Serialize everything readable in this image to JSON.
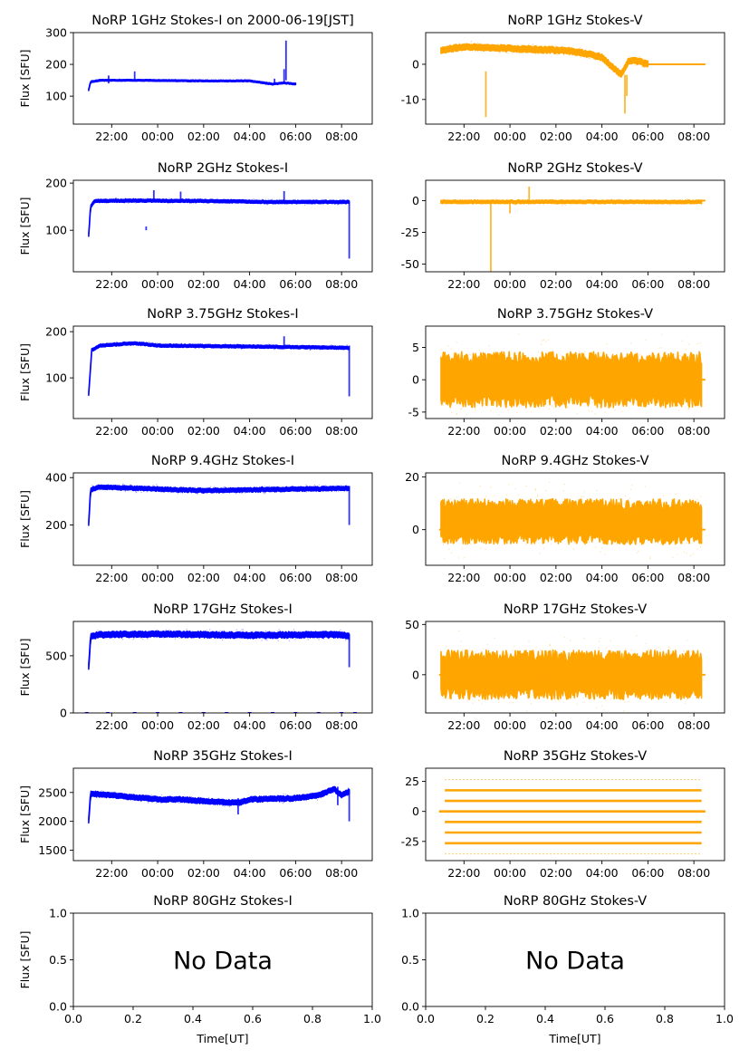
{
  "figure": {
    "xlabel": "Time[UT]"
  },
  "chart_data": [
    {
      "id": "p1i",
      "type": "scatter",
      "title": "NoRP 1GHz Stokes-I on 2000-06-19[JST]",
      "ylabel": "Flux [SFU]",
      "xlabel": "",
      "color": "#0000ff",
      "xlim": [
        "20:20",
        "09:20"
      ],
      "xticks": [
        "22:00",
        "00:00",
        "02:00",
        "04:00",
        "06:00",
        "08:00"
      ],
      "ylim": [
        12,
        300
      ],
      "yticks": [
        100,
        200,
        300
      ],
      "trace": {
        "start": "21:00",
        "end": "06:00",
        "spread": 4,
        "points": [
          [
            "21:00",
            120
          ],
          [
            "21:05",
            145
          ],
          [
            "21:30",
            150
          ],
          [
            "23:00",
            150
          ],
          [
            "02:00",
            148
          ],
          [
            "04:00",
            148
          ],
          [
            "04:30",
            143
          ],
          [
            "05:00",
            138
          ],
          [
            "05:30",
            142
          ],
          [
            "06:00",
            138
          ]
        ]
      },
      "spikes": [
        [
          "21:52",
          140,
          165
        ],
        [
          "23:00",
          150,
          178
        ],
        [
          "05:05",
          140,
          155
        ],
        [
          "05:30",
          140,
          185
        ],
        [
          "05:35",
          150,
          275
        ]
      ]
    },
    {
      "id": "p1v",
      "type": "scatter",
      "title": "NoRP 1GHz Stokes-V",
      "ylabel": "",
      "xlabel": "",
      "color": "#ffa500",
      "xlim": [
        "20:20",
        "09:20"
      ],
      "xticks": [
        "22:00",
        "00:00",
        "02:00",
        "04:00",
        "06:00",
        "08:00"
      ],
      "ylim": [
        -17,
        9
      ],
      "yticks": [
        -10,
        0
      ],
      "trace": {
        "start": "21:00",
        "end": "06:00",
        "spread": 1.4,
        "points": [
          [
            "21:00",
            4
          ],
          [
            "22:00",
            5
          ],
          [
            "00:00",
            4.5
          ],
          [
            "02:00",
            4
          ],
          [
            "03:00",
            3.5
          ],
          [
            "04:00",
            2
          ],
          [
            "04:50",
            -3
          ],
          [
            "05:10",
            1
          ],
          [
            "05:30",
            1
          ],
          [
            "06:00",
            0
          ]
        ]
      },
      "flat": {
        "start": "06:00",
        "end": "08:30",
        "value": 0
      },
      "spikes": [
        [
          "22:57",
          -2,
          -15
        ],
        [
          "05:00",
          -3,
          -14
        ],
        [
          "05:05",
          -3,
          -9
        ]
      ]
    },
    {
      "id": "p2i",
      "type": "scatter",
      "title": "NoRP 2GHz Stokes-I",
      "ylabel": "Flux [SFU]",
      "xlabel": "",
      "color": "#0000ff",
      "xlim": [
        "20:20",
        "09:20"
      ],
      "xticks": [
        "22:00",
        "00:00",
        "02:00",
        "04:00",
        "06:00",
        "08:00"
      ],
      "ylim": [
        12,
        206
      ],
      "yticks": [
        100,
        200
      ],
      "trace": {
        "start": "21:00",
        "end": "08:20",
        "spread": 5,
        "points": [
          [
            "21:00",
            90
          ],
          [
            "21:05",
            150
          ],
          [
            "21:15",
            162
          ],
          [
            "23:00",
            163
          ],
          [
            "02:00",
            162
          ],
          [
            "05:00",
            160
          ],
          [
            "08:20",
            160
          ]
        ]
      },
      "spikes": [
        [
          "23:30",
          100,
          108
        ],
        [
          "23:50",
          160,
          185
        ],
        [
          "01:00",
          160,
          182
        ],
        [
          "05:30",
          160,
          183
        ],
        [
          "08:20",
          40,
          160
        ]
      ]
    },
    {
      "id": "p2v",
      "type": "scatter",
      "title": "NoRP 2GHz Stokes-V",
      "ylabel": "",
      "xlabel": "",
      "color": "#ffa500",
      "xlim": [
        "20:20",
        "09:20"
      ],
      "xticks": [
        "22:00",
        "00:00",
        "02:00",
        "04:00",
        "06:00",
        "08:00"
      ],
      "ylim": [
        -56,
        16
      ],
      "yticks": [
        -50,
        -25,
        0
      ],
      "trace": {
        "start": "21:00",
        "end": "08:20",
        "spread": 2,
        "points": [
          [
            "21:00",
            -1
          ],
          [
            "08:20",
            -1
          ]
        ]
      },
      "flat": {
        "start": "08:20",
        "end": "08:30",
        "value": 0
      },
      "spikes": [
        [
          "00:50",
          0,
          11
        ],
        [
          "23:10",
          -2,
          -56
        ],
        [
          "00:00",
          -2,
          -10
        ]
      ]
    },
    {
      "id": "p3i",
      "type": "scatter",
      "title": "NoRP 3.75GHz Stokes-I",
      "ylabel": "Flux [SFU]",
      "xlabel": "",
      "color": "#0000ff",
      "xlim": [
        "20:20",
        "09:20"
      ],
      "xticks": [
        "22:00",
        "00:00",
        "02:00",
        "04:00",
        "06:00",
        "08:00"
      ],
      "ylim": [
        12,
        212
      ],
      "yticks": [
        100,
        200
      ],
      "trace": {
        "start": "21:00",
        "end": "08:20",
        "spread": 5,
        "points": [
          [
            "21:00",
            65
          ],
          [
            "21:08",
            160
          ],
          [
            "21:30",
            170
          ],
          [
            "23:00",
            175
          ],
          [
            "00:00",
            170
          ],
          [
            "04:00",
            168
          ],
          [
            "08:20",
            165
          ]
        ]
      },
      "spikes": [
        [
          "05:30",
          165,
          190
        ],
        [
          "08:20",
          60,
          170
        ]
      ]
    },
    {
      "id": "p3v",
      "type": "scatter",
      "title": "NoRP 3.75GHz Stokes-V",
      "ylabel": "",
      "xlabel": "",
      "color": "#ffa500",
      "xlim": [
        "20:20",
        "09:20"
      ],
      "xticks": [
        "22:00",
        "00:00",
        "02:00",
        "04:00",
        "06:00",
        "08:00"
      ],
      "ylim": [
        -6,
        8.3
      ],
      "yticks": [
        -5,
        0,
        5
      ],
      "trace": {
        "start": "21:00",
        "end": "08:20",
        "spread": 6,
        "points": [
          [
            "21:00",
            0
          ],
          [
            "08:20",
            0
          ]
        ]
      },
      "flat": {
        "start": "08:20",
        "end": "08:30",
        "value": 0
      },
      "spikes": []
    },
    {
      "id": "p4i",
      "type": "scatter",
      "title": "NoRP 9.4GHz Stokes-I",
      "ylabel": "Flux [SFU]",
      "xlabel": "",
      "color": "#0000ff",
      "xlim": [
        "20:20",
        "09:20"
      ],
      "xticks": [
        "22:00",
        "00:00",
        "02:00",
        "04:00",
        "06:00",
        "08:00"
      ],
      "ylim": [
        30,
        420
      ],
      "yticks": [
        200,
        400
      ],
      "trace": {
        "start": "21:00",
        "end": "08:20",
        "spread": 14,
        "points": [
          [
            "21:00",
            205
          ],
          [
            "21:05",
            350
          ],
          [
            "21:30",
            360
          ],
          [
            "00:00",
            352
          ],
          [
            "02:00",
            345
          ],
          [
            "05:00",
            350
          ],
          [
            "08:20",
            355
          ]
        ]
      },
      "spikes": [
        [
          "08:20",
          200,
          365
        ]
      ]
    },
    {
      "id": "p4v",
      "type": "scatter",
      "title": "NoRP 9.4GHz Stokes-V",
      "ylabel": "",
      "xlabel": "",
      "color": "#ffa500",
      "xlim": [
        "20:20",
        "09:20"
      ],
      "xticks": [
        "22:00",
        "00:00",
        "02:00",
        "04:00",
        "06:00",
        "08:00"
      ],
      "ylim": [
        -13.5,
        21.5
      ],
      "yticks": [
        0,
        20
      ],
      "trace": {
        "start": "21:00",
        "end": "08:20",
        "spread": 12,
        "points": [
          [
            "21:00",
            3
          ],
          [
            "08:20",
            3
          ]
        ]
      },
      "flat": {
        "start": "20:55",
        "end": "08:30",
        "value": 0
      },
      "spikes": []
    },
    {
      "id": "p5i",
      "type": "scatter",
      "title": "NoRP 17GHz Stokes-I",
      "ylabel": "Flux [SFU]",
      "xlabel": "",
      "color": "#0000ff",
      "xlim": [
        "20:20",
        "09:20"
      ],
      "xticks": [
        "22:00",
        "00:00",
        "02:00",
        "04:00",
        "06:00",
        "08:00"
      ],
      "ylim": [
        0,
        800
      ],
      "yticks": [
        0,
        500
      ],
      "trace": {
        "start": "21:00",
        "end": "08:20",
        "spread": 40,
        "points": [
          [
            "21:00",
            400
          ],
          [
            "21:05",
            670
          ],
          [
            "21:30",
            685
          ],
          [
            "00:00",
            690
          ],
          [
            "04:00",
            680
          ],
          [
            "08:00",
            685
          ],
          [
            "08:20",
            670
          ]
        ]
      },
      "spikes": [
        [
          "08:20",
          400,
          690
        ]
      ],
      "zeros": [
        "20:55",
        "21:50",
        "23:00",
        "00:00",
        "01:00",
        "02:00",
        "03:00",
        "04:00",
        "05:00",
        "06:00",
        "07:00",
        "08:00",
        "08:35"
      ]
    },
    {
      "id": "p5v",
      "type": "scatter",
      "title": "NoRP 17GHz Stokes-V",
      "ylabel": "",
      "xlabel": "",
      "color": "#ffa500",
      "xlim": [
        "20:20",
        "09:20"
      ],
      "xticks": [
        "22:00",
        "00:00",
        "02:00",
        "04:00",
        "06:00",
        "08:00"
      ],
      "ylim": [
        -38,
        53
      ],
      "yticks": [
        0,
        50
      ],
      "trace": {
        "start": "21:00",
        "end": "08:20",
        "spread": 34,
        "points": [
          [
            "21:00",
            0
          ],
          [
            "08:20",
            0
          ]
        ]
      },
      "flat": {
        "start": "20:55",
        "end": "08:30",
        "value": 0
      },
      "spikes": []
    },
    {
      "id": "p6i",
      "type": "scatter",
      "title": "NoRP 35GHz Stokes-I",
      "ylabel": "Flux [SFU]",
      "xlabel": "",
      "color": "#0000ff",
      "xlim": [
        "20:20",
        "09:20"
      ],
      "xticks": [
        "22:00",
        "00:00",
        "02:00",
        "04:00",
        "06:00",
        "08:00"
      ],
      "ylim": [
        1320,
        2920
      ],
      "yticks": [
        1500,
        2000,
        2500
      ],
      "trace": {
        "start": "21:00",
        "end": "08:20",
        "spread": 70,
        "points": [
          [
            "21:00",
            2000
          ],
          [
            "21:05",
            2480
          ],
          [
            "22:00",
            2450
          ],
          [
            "00:00",
            2380
          ],
          [
            "01:00",
            2380
          ],
          [
            "02:00",
            2350
          ],
          [
            "03:30",
            2320
          ],
          [
            "04:00",
            2380
          ],
          [
            "06:00",
            2400
          ],
          [
            "07:00",
            2450
          ],
          [
            "07:40",
            2560
          ],
          [
            "08:00",
            2450
          ],
          [
            "08:20",
            2520
          ]
        ]
      },
      "spikes": [
        [
          "03:30",
          2120,
          2400
        ],
        [
          "07:50",
          2280,
          2600
        ],
        [
          "08:20",
          2000,
          2550
        ]
      ]
    },
    {
      "id": "p6v",
      "type": "scatter",
      "title": "NoRP 35GHz Stokes-V",
      "ylabel": "",
      "xlabel": "",
      "color": "#ffa500",
      "xlim": [
        "20:20",
        "09:20"
      ],
      "xticks": [
        "22:00",
        "00:00",
        "02:00",
        "04:00",
        "06:00",
        "08:00"
      ],
      "ylim": [
        -41,
        36
      ],
      "yticks": [
        -25,
        0,
        25
      ],
      "levels": [
        {
          "value": 26.5,
          "start": "21:10",
          "end": "08:20",
          "faint": true
        },
        {
          "value": 17.6,
          "start": "21:10",
          "end": "08:20",
          "faint": false
        },
        {
          "value": 8.8,
          "start": "21:10",
          "end": "08:20",
          "faint": false
        },
        {
          "value": 0,
          "start": "20:55",
          "end": "08:30",
          "faint": false
        },
        {
          "value": -8.8,
          "start": "21:10",
          "end": "08:20",
          "faint": false
        },
        {
          "value": -17.6,
          "start": "21:10",
          "end": "08:20",
          "faint": false
        },
        {
          "value": -26.5,
          "start": "21:10",
          "end": "08:20",
          "faint": false
        },
        {
          "value": -35.3,
          "start": "21:10",
          "end": "08:20",
          "faint": true
        }
      ]
    },
    {
      "id": "p7i",
      "type": "empty",
      "title": "NoRP 80GHz Stokes-I",
      "ylabel": "Flux [SFU]",
      "xlabel": "Time[UT]",
      "message": "No Data",
      "xticks": [
        "0.0",
        "0.2",
        "0.4",
        "0.6",
        "0.8",
        "1.0"
      ],
      "yticks": [
        "0.0",
        "0.5",
        "1.0"
      ]
    },
    {
      "id": "p7v",
      "type": "empty",
      "title": "NoRP 80GHz Stokes-V",
      "ylabel": "",
      "xlabel": "Time[UT]",
      "message": "No Data",
      "xticks": [
        "0.0",
        "0.2",
        "0.4",
        "0.6",
        "0.8",
        "1.0"
      ],
      "yticks": [
        "0.0",
        "0.5",
        "1.0"
      ]
    }
  ]
}
